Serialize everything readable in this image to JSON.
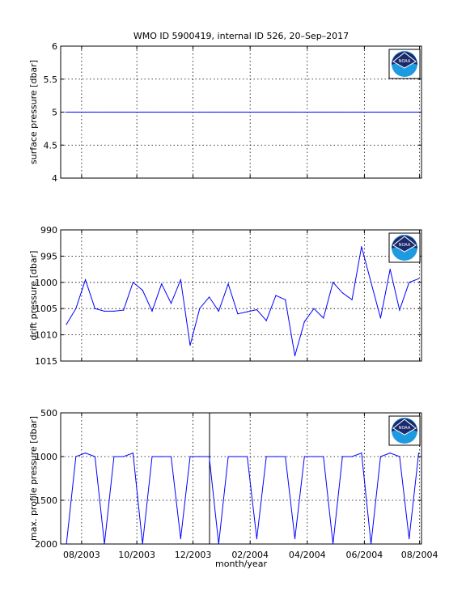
{
  "title": "WMO ID 5900419, internal ID 526, 20–Sep–2017",
  "xlabel": "month/year",
  "x_tick_labels": [
    "08/2003",
    "10/2003",
    "12/2003",
    "02/2004",
    "04/2004",
    "06/2004",
    "08/2004"
  ],
  "logo_icon": "noaa-logo-icon",
  "logo_text": "NOAA",
  "colors": {
    "series": "#0000ff",
    "axes": "#000000",
    "logo_navy": "#1a2a6c",
    "logo_blue": "#1e9be0"
  },
  "chart_data": [
    {
      "type": "line",
      "ylabel": "surface pressure [dbar]",
      "ylim": [
        4,
        6
      ],
      "y_reversed": false,
      "yticks": [
        4,
        4.5,
        5,
        5.5,
        6
      ],
      "ytick_labels": [
        "4",
        "4.5",
        "5",
        "5.5",
        "6"
      ],
      "grid": true,
      "series": [
        {
          "x": [
            0,
            1,
            2,
            3,
            4,
            5,
            6,
            7,
            8,
            9,
            10,
            11,
            12,
            13,
            14,
            15,
            16,
            17,
            18,
            19,
            20,
            21,
            22,
            23,
            24,
            25,
            26,
            27,
            28,
            29,
            30,
            31,
            32,
            33,
            34,
            35,
            36,
            37
          ],
          "values": [
            5,
            5,
            5,
            5,
            5,
            5,
            5,
            5,
            5,
            5,
            5,
            5,
            5,
            5,
            5,
            5,
            5,
            5,
            5,
            5,
            5,
            5,
            5,
            5,
            5,
            5,
            5,
            5,
            5,
            5,
            5,
            5,
            5,
            5,
            5,
            5,
            5,
            5
          ]
        }
      ]
    },
    {
      "type": "line",
      "ylabel": "drift pressure [dbar]",
      "ylim": [
        990,
        1015
      ],
      "y_reversed": true,
      "yticks": [
        990,
        995,
        1000,
        1005,
        1010,
        1015
      ],
      "ytick_labels": [
        "990",
        "995",
        "1000",
        "1005",
        "1010",
        "1015"
      ],
      "grid": true,
      "series": [
        {
          "x": [
            0,
            1,
            2,
            3,
            4,
            5,
            6,
            7,
            8,
            9,
            10,
            11,
            12,
            13,
            14,
            15,
            16,
            17,
            18,
            19,
            20,
            21,
            22,
            23,
            24,
            25,
            26,
            27,
            28,
            29,
            30,
            31,
            32,
            33,
            34,
            35,
            36,
            37
          ],
          "values": [
            1008,
            1005,
            999.5,
            1005,
            1005.5,
            1005.5,
            1005.3,
            1000,
            1001.5,
            1005.5,
            1000.3,
            1004,
            999.5,
            1012,
            1005,
            1002.8,
            1005.5,
            1000.3,
            1006,
            1005.6,
            1005.2,
            1007.3,
            1002.5,
            1003.3,
            1014,
            1007.5,
            1005,
            1006.8,
            1000,
            1002,
            1003.3,
            993.2,
            1000,
            1006.8,
            997.5,
            1005.3,
            1000,
            999.3
          ]
        }
      ]
    },
    {
      "type": "line",
      "ylabel": "max. profile pressure [dbar]",
      "ylim": [
        500,
        2000
      ],
      "y_reversed": true,
      "yticks": [
        500,
        1000,
        1500,
        2000
      ],
      "ytick_labels": [
        "500",
        "1000",
        "1500",
        "2000"
      ],
      "grid": true,
      "series": [
        {
          "x": [
            0,
            1,
            2,
            3,
            4,
            5,
            6,
            7,
            8,
            9,
            10,
            11,
            12,
            13,
            14,
            15,
            16,
            17,
            18,
            19,
            20,
            21,
            22,
            23,
            24,
            25,
            26,
            27,
            28,
            29,
            30,
            31,
            32,
            33,
            34,
            35,
            36,
            37
          ],
          "values": [
            2000,
            1000,
            960,
            1000,
            2000,
            1000,
            1000,
            960,
            2000,
            1000,
            1000,
            1000,
            1940,
            1000,
            1000,
            1000,
            2000,
            1000,
            1000,
            1000,
            1940,
            1000,
            1000,
            1000,
            1940,
            1000,
            1000,
            1000,
            2000,
            1000,
            1000,
            960,
            2000,
            1000,
            960,
            1000,
            1940,
            960
          ]
        }
      ]
    }
  ]
}
